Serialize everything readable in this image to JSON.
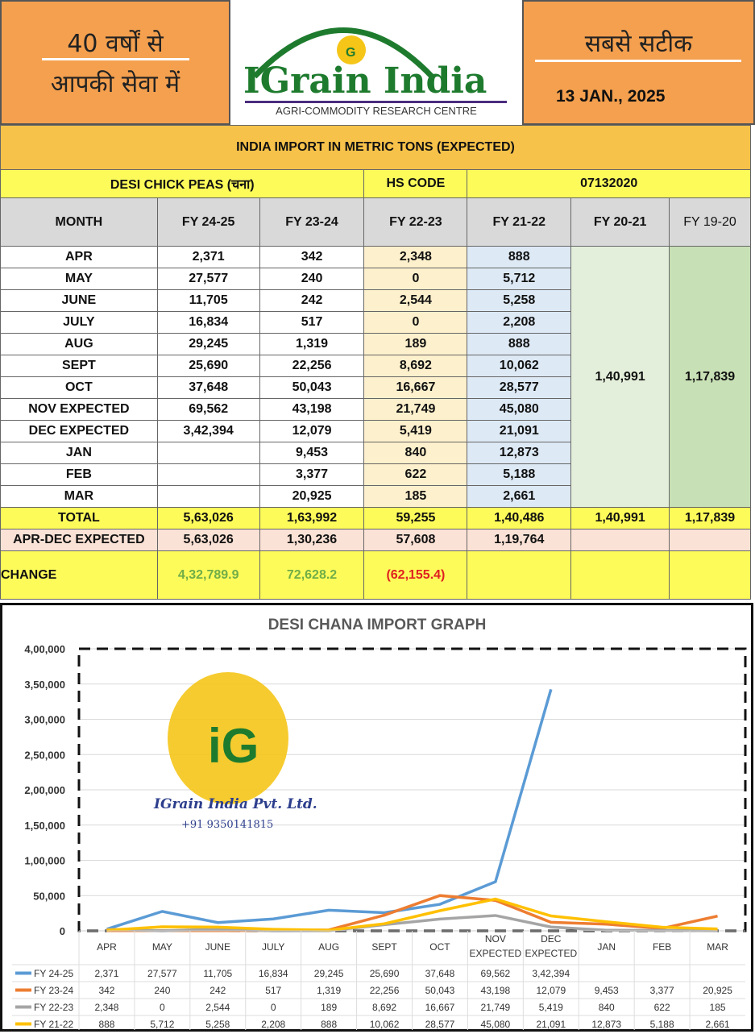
{
  "header": {
    "left_line1": "40 वर्षों से",
    "left_line2": "आपकी सेवा में",
    "logo_text": "IGrain India",
    "logo_sub": "AGRI-COMMODITY RESEARCH CENTRE",
    "right_title": "सबसे सटीक",
    "date": "13 JAN., 2025"
  },
  "table": {
    "title": "INDIA IMPORT IN METRIC TONS (EXPECTED)",
    "product": "DESI CHICK PEAS (चना)",
    "hs_label": "HS CODE",
    "hs_code": "07132020",
    "columns": [
      "MONTH",
      "FY 24-25",
      "FY 23-24",
      "FY 22-23",
      "FY 21-22",
      "FY 20-21",
      "FY 19-20"
    ],
    "rows": [
      [
        "APR",
        "2,371",
        "342",
        "2,348",
        "888"
      ],
      [
        "MAY",
        "27,577",
        "240",
        "0",
        "5,712"
      ],
      [
        "JUNE",
        "11,705",
        "242",
        "2,544",
        "5,258"
      ],
      [
        "JULY",
        "16,834",
        "517",
        "0",
        "2,208"
      ],
      [
        "AUG",
        "29,245",
        "1,319",
        "189",
        "888"
      ],
      [
        "SEPT",
        "25,690",
        "22,256",
        "8,692",
        "10,062"
      ],
      [
        "OCT",
        "37,648",
        "50,043",
        "16,667",
        "28,577"
      ],
      [
        "NOV EXPECTED",
        "69,562",
        "43,198",
        "21,749",
        "45,080"
      ],
      [
        "DEC  EXPECTED",
        "3,42,394",
        "12,079",
        "5,419",
        "21,091"
      ],
      [
        "JAN",
        "",
        "9,453",
        "840",
        "12,873"
      ],
      [
        "FEB",
        "",
        "3,377",
        "622",
        "5,188"
      ],
      [
        "MAR",
        "",
        "20,925",
        "185",
        "2,661"
      ]
    ],
    "fy2021_annual": "1,40,991",
    "fy1920_annual": "1,17,839",
    "total": [
      "TOTAL",
      "5,63,026",
      "1,63,992",
      "59,255",
      "1,40,486",
      "1,40,991",
      "1,17,839"
    ],
    "apr_dec": [
      "APR-DEC EXPECTED",
      "5,63,026",
      "1,30,236",
      "57,608",
      "1,19,764"
    ],
    "change": [
      "CHANGE",
      "4,32,789.9",
      "72,628.2",
      "(62,155.4)"
    ],
    "watermark": "IGrain India Pvt. Ltd.",
    "watermark_phone": "+91 9350141815"
  },
  "chart_data": {
    "type": "line",
    "title": "DESI CHANA IMPORT GRAPH",
    "categories": [
      "APR",
      "MAY",
      "JUNE",
      "JULY",
      "AUG",
      "SEPT",
      "OCT",
      "NOV EXPECTED",
      "DEC EXPECTED",
      "JAN",
      "FEB",
      "MAR"
    ],
    "ylim": [
      0,
      400000
    ],
    "yticks": [
      "0",
      "50,000",
      "1,00,000",
      "1,50,000",
      "2,00,000",
      "2,50,000",
      "3,00,000",
      "3,50,000",
      "4,00,000"
    ],
    "grid": true,
    "legend": "data-table-below",
    "series": [
      {
        "name": "FY 24-25",
        "color": "#5b9bd5",
        "values": [
          2371,
          27577,
          11705,
          16834,
          29245,
          25690,
          37648,
          69562,
          342394,
          null,
          null,
          null
        ],
        "labels": [
          "2,371",
          "27,577",
          "11,705",
          "16,834",
          "29,245",
          "25,690",
          "37,648",
          "69,562",
          "3,42,394",
          "",
          "",
          ""
        ]
      },
      {
        "name": "FY 23-24",
        "color": "#ed7d31",
        "values": [
          342,
          240,
          242,
          517,
          1319,
          22256,
          50043,
          43198,
          12079,
          9453,
          3377,
          20925
        ],
        "labels": [
          "342",
          "240",
          "242",
          "517",
          "1,319",
          "22,256",
          "50,043",
          "43,198",
          "12,079",
          "9,453",
          "3,377",
          "20,925"
        ]
      },
      {
        "name": "FY 22-23",
        "color": "#a5a5a5",
        "values": [
          2348,
          0,
          2544,
          0,
          189,
          8692,
          16667,
          21749,
          5419,
          840,
          622,
          185
        ],
        "labels": [
          "2,348",
          "0",
          "2,544",
          "0",
          "189",
          "8,692",
          "16,667",
          "21,749",
          "5,419",
          "840",
          "622",
          "185"
        ]
      },
      {
        "name": "FY 21-22",
        "color": "#ffc000",
        "values": [
          888,
          5712,
          5258,
          2208,
          888,
          10062,
          28577,
          45080,
          21091,
          12873,
          5188,
          2661
        ],
        "labels": [
          "888",
          "5,712",
          "5,258",
          "2,208",
          "888",
          "10,062",
          "28,577",
          "45,080",
          "21,091",
          "12,873",
          "5,188",
          "2,661"
        ]
      }
    ],
    "watermark": "IGrain India Pvt. Ltd.",
    "watermark_phone": "+91 9350141815"
  }
}
